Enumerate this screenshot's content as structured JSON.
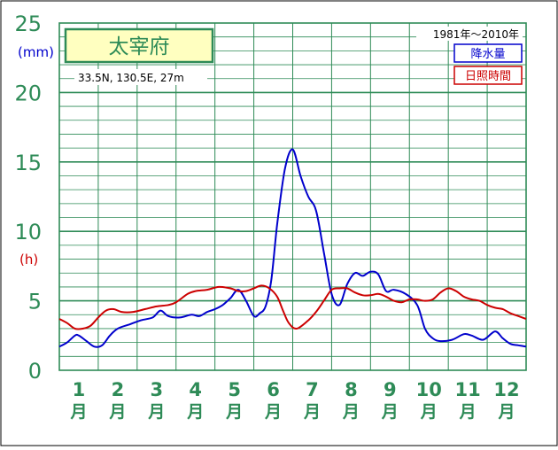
{
  "chart_data": {
    "type": "line",
    "title": "太宰府",
    "subtitle": "33.5N,  130.5E,  27m",
    "period": "1981年〜2010年",
    "y_unit_left": "(mm)",
    "y_unit_right": "(h)",
    "ylim": [
      0,
      25
    ],
    "y_ticks": [
      0,
      5,
      10,
      15,
      20,
      25
    ],
    "x_ticks": [
      {
        "num": "1",
        "unit": "月"
      },
      {
        "num": "2",
        "unit": "月"
      },
      {
        "num": "3",
        "unit": "月"
      },
      {
        "num": "4",
        "unit": "月"
      },
      {
        "num": "5",
        "unit": "月"
      },
      {
        "num": "6",
        "unit": "月"
      },
      {
        "num": "7",
        "unit": "月"
      },
      {
        "num": "8",
        "unit": "月"
      },
      {
        "num": "9",
        "unit": "月"
      },
      {
        "num": "10",
        "unit": "月"
      },
      {
        "num": "11",
        "unit": "月"
      },
      {
        "num": "12",
        "unit": "月"
      }
    ],
    "xlim": [
      0.5,
      12.5
    ],
    "grid": true,
    "legend_placement": "top-right",
    "series": [
      {
        "name": "降水量",
        "color": "#0000cc",
        "x": [
          0.5,
          0.7,
          0.9,
          1.0,
          1.2,
          1.4,
          1.6,
          1.8,
          2.0,
          2.3,
          2.6,
          2.9,
          3.1,
          3.3,
          3.6,
          3.9,
          4.1,
          4.3,
          4.5,
          4.7,
          4.9,
          5.1,
          5.3,
          5.5,
          5.65,
          5.8,
          5.95,
          6.1,
          6.3,
          6.5,
          6.7,
          6.9,
          7.1,
          7.3,
          7.5,
          7.7,
          7.9,
          8.1,
          8.3,
          8.5,
          8.7,
          8.9,
          9.1,
          9.4,
          9.7,
          9.9,
          10.1,
          10.3,
          10.6,
          10.9,
          11.1,
          11.4,
          11.7,
          11.9,
          12.1,
          12.3,
          12.5
        ],
        "y": [
          1.7,
          2.0,
          2.5,
          2.5,
          2.1,
          1.7,
          1.8,
          2.5,
          3.0,
          3.3,
          3.6,
          3.8,
          4.3,
          3.9,
          3.8,
          4.0,
          3.9,
          4.2,
          4.4,
          4.7,
          5.2,
          5.8,
          5.0,
          3.9,
          4.1,
          4.6,
          6.5,
          10.5,
          14.5,
          15.9,
          14.0,
          12.5,
          11.5,
          8.5,
          5.5,
          4.7,
          6.2,
          7.0,
          6.8,
          7.1,
          6.9,
          5.7,
          5.8,
          5.5,
          4.7,
          3.0,
          2.3,
          2.1,
          2.2,
          2.6,
          2.5,
          2.2,
          2.8,
          2.3,
          1.9,
          1.8,
          1.7
        ]
      },
      {
        "name": "日照時間",
        "color": "#cc0000",
        "x": [
          0.5,
          0.7,
          0.9,
          1.1,
          1.3,
          1.5,
          1.7,
          1.9,
          2.1,
          2.4,
          2.7,
          3.0,
          3.3,
          3.5,
          3.8,
          4.0,
          4.3,
          4.6,
          4.9,
          5.1,
          5.3,
          5.5,
          5.7,
          5.9,
          6.1,
          6.25,
          6.4,
          6.6,
          6.9,
          7.1,
          7.3,
          7.5,
          7.7,
          7.9,
          8.1,
          8.3,
          8.5,
          8.7,
          8.9,
          9.1,
          9.3,
          9.5,
          9.7,
          9.9,
          10.1,
          10.3,
          10.5,
          10.7,
          10.9,
          11.1,
          11.3,
          11.5,
          11.7,
          11.9,
          12.1,
          12.3,
          12.5
        ],
        "y": [
          3.7,
          3.4,
          3.0,
          3.0,
          3.2,
          3.8,
          4.3,
          4.4,
          4.2,
          4.2,
          4.4,
          4.6,
          4.7,
          4.9,
          5.5,
          5.7,
          5.8,
          6.0,
          5.9,
          5.7,
          5.7,
          5.9,
          6.1,
          5.9,
          5.3,
          4.3,
          3.4,
          3.0,
          3.6,
          4.2,
          5.0,
          5.8,
          5.9,
          5.9,
          5.6,
          5.4,
          5.4,
          5.5,
          5.3,
          5.0,
          4.9,
          5.1,
          5.1,
          5.0,
          5.1,
          5.6,
          5.9,
          5.7,
          5.3,
          5.1,
          5.0,
          4.7,
          4.5,
          4.4,
          4.1,
          3.9,
          3.7
        ]
      }
    ]
  }
}
